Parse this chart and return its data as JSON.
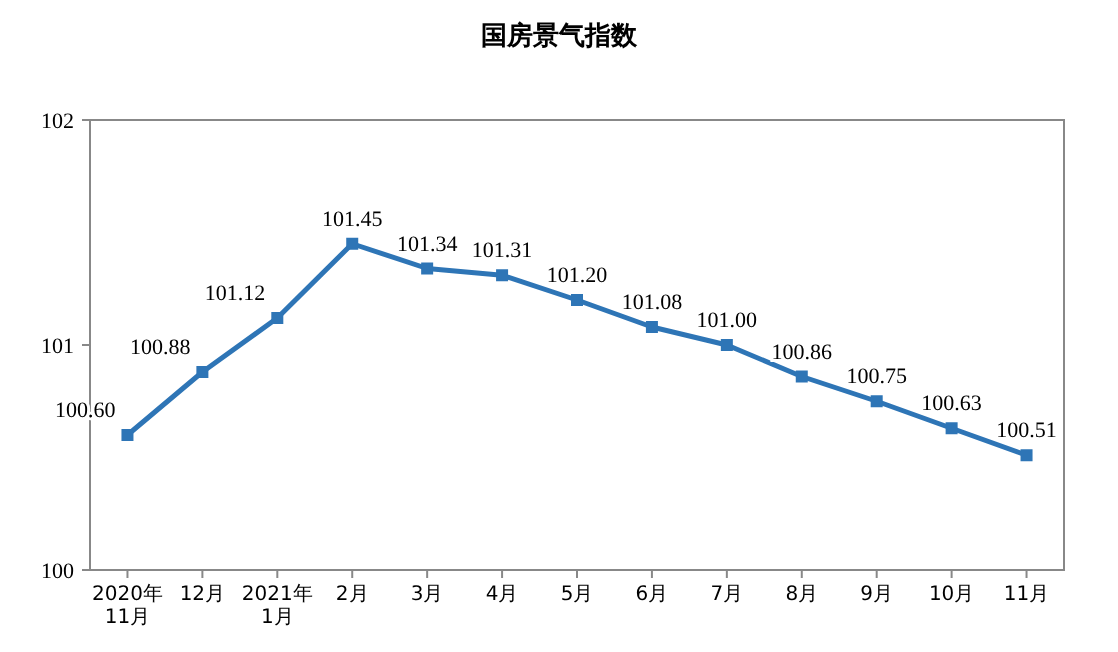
{
  "chart_data": {
    "type": "line",
    "title": "国房景气指数",
    "categories": [
      "2020年\n11月",
      "12月",
      "2021年\n1月",
      "2月",
      "3月",
      "4月",
      "5月",
      "6月",
      "7月",
      "8月",
      "9月",
      "10月",
      "11月"
    ],
    "series": [
      {
        "color": "#2e75b6",
        "values": [
          100.6,
          100.88,
          101.12,
          101.45,
          101.34,
          101.31,
          101.2,
          101.08,
          101.0,
          100.86,
          100.75,
          100.63,
          100.51
        ],
        "value_labels": [
          "100.60",
          "100.88",
          "101.12",
          "101.45",
          "101.34",
          "101.31",
          "101.20",
          "101.08",
          "101.00",
          "100.86",
          "100.75",
          "100.63",
          "100.51"
        ]
      }
    ],
    "ylim": [
      100,
      102
    ],
    "yticks": [
      100,
      101,
      102
    ],
    "grid": false,
    "marker": "square",
    "line_style": "solid"
  }
}
